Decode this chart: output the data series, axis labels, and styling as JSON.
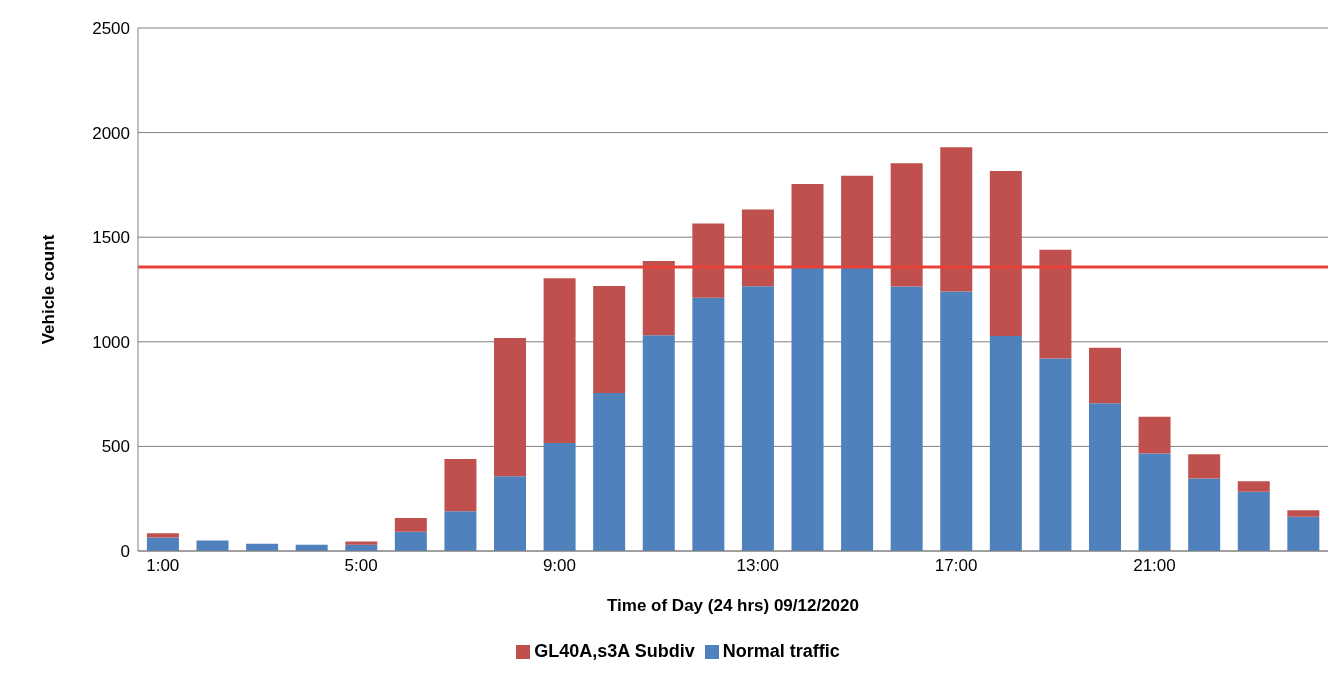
{
  "chart_data": {
    "type": "bar",
    "stacked": true,
    "xlabel": "Time of Day (24 hrs) 09/12/2020",
    "ylabel": "Vehicle count",
    "categories": [
      "1:00",
      null,
      null,
      null,
      "5:00",
      null,
      null,
      null,
      "9:00",
      null,
      null,
      null,
      "13:00",
      null,
      null,
      null,
      "17:00",
      null,
      null,
      null,
      "21:00",
      null,
      null,
      null
    ],
    "series": [
      {
        "name": "Normal traffic",
        "color": "#4f81bd",
        "values": [
          65,
          50,
          35,
          30,
          30,
          92,
          190,
          357,
          516,
          755,
          1031,
          1211,
          1265,
          1357,
          1357,
          1264,
          1241,
          1028,
          920,
          706,
          466,
          347,
          283,
          164
        ]
      },
      {
        "name": "GL40A,s3A Subdiv",
        "color": "#c0504d",
        "values": [
          20,
          0,
          0,
          0,
          15,
          66,
          250,
          661,
          788,
          512,
          355,
          355,
          368,
          397,
          437,
          590,
          689,
          789,
          520,
          265,
          176,
          115,
          51,
          31
        ]
      }
    ],
    "ylim": [
      0,
      2500
    ],
    "yticks": [
      0,
      500,
      1000,
      1500,
      2000,
      2500
    ],
    "grid": "y",
    "legend": "bottom",
    "ref_lines": [
      {
        "axis": "y",
        "value": 1357,
        "color": "#e8413a"
      }
    ]
  }
}
